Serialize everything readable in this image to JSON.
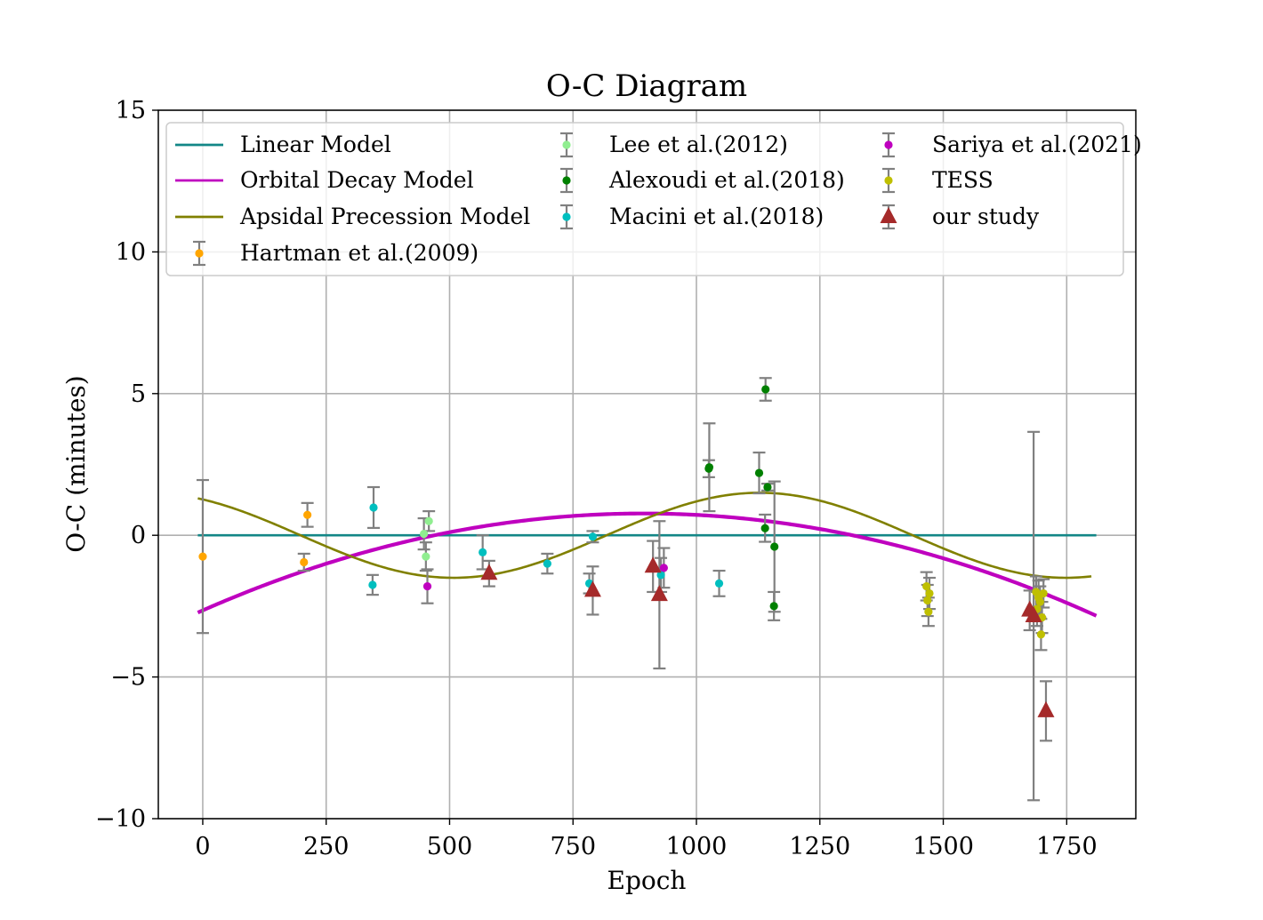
{
  "chart_data": {
    "type": "scatter",
    "title": "O-C Diagram",
    "xlabel": "Epoch",
    "ylabel": "O-C (minutes)",
    "xlim": [
      -90,
      1890
    ],
    "ylim": [
      -10,
      15
    ],
    "grid": true,
    "legend_position": "top",
    "x_ticks": [
      0,
      250,
      500,
      750,
      1000,
      1250,
      1500,
      1750
    ],
    "y_ticks": [
      15,
      10,
      5,
      0,
      -5,
      -10
    ],
    "x_tick_labels": [
      "0",
      "250",
      "500",
      "750",
      "1000",
      "1250",
      "1500",
      "1750"
    ],
    "y_tick_labels": [
      "15",
      "10",
      "5",
      "0",
      "−5",
      "−10"
    ],
    "models": [
      {
        "name": "Linear Model",
        "color": "#138787",
        "x_range": [
          -10,
          1810
        ],
        "formula": "linear",
        "params": {
          "value": 0.0
        }
      },
      {
        "name": "Orbital Decay Model",
        "color": "#bf00bf",
        "x_range": [
          -10,
          1810
        ],
        "formula": "quadratic",
        "params": {
          "a": -2.65,
          "b": 0.00766,
          "c": -4.29e-06
        }
      },
      {
        "name": "Apsidal Precession Model",
        "color": "#808000",
        "x_range": [
          -10,
          1800
        ],
        "formula": "sinusoid",
        "params": {
          "offset": 0.0,
          "amplitude": 1.5,
          "period": 1240,
          "peak_epoch": 1128
        }
      }
    ],
    "series": [
      {
        "name": "Hartman et al.(2009)",
        "color": "#ffa500",
        "marker": "circle",
        "points": [
          {
            "x": 0,
            "y": -0.75,
            "err": 2.7
          },
          {
            "x": 205,
            "y": -0.95,
            "err": 0.3
          },
          {
            "x": 212,
            "y": 0.72,
            "err": 0.42
          }
        ]
      },
      {
        "name": "Lee et al.(2012)",
        "color": "#90ee90",
        "marker": "circle",
        "points": [
          {
            "x": 448,
            "y": 0.05,
            "err": 0.55
          },
          {
            "x": 452,
            "y": -0.75,
            "err": 0.5
          },
          {
            "x": 458,
            "y": 0.5,
            "err": 0.35
          }
        ]
      },
      {
        "name": "Alexoudi et al.(2018)",
        "color": "#008000",
        "marker": "circle",
        "points": [
          {
            "x": 1025,
            "y": 2.35,
            "err": 0.3
          },
          {
            "x": 1026,
            "y": 2.4,
            "err": 1.55
          },
          {
            "x": 1127,
            "y": 2.2,
            "err": 0.72
          },
          {
            "x": 1139,
            "y": 0.25,
            "err": 0.48
          },
          {
            "x": 1140,
            "y": 5.15,
            "err": 0.4
          },
          {
            "x": 1144,
            "y": 1.7,
            "err": 0.12
          },
          {
            "x": 1157,
            "y": -2.5,
            "err": 0.5
          },
          {
            "x": 1158,
            "y": -0.4,
            "err": 2.3
          }
        ]
      },
      {
        "name": "Macini et al.(2018)",
        "color": "#00bfbf",
        "marker": "circle",
        "points": [
          {
            "x": 344,
            "y": -1.75,
            "err": 0.35
          },
          {
            "x": 346,
            "y": 0.98,
            "err": 0.72
          },
          {
            "x": 567,
            "y": -0.6,
            "err": 0.6
          },
          {
            "x": 698,
            "y": -1.0,
            "err": 0.35
          },
          {
            "x": 783,
            "y": -1.7,
            "err": 0.35
          },
          {
            "x": 790,
            "y": -0.05,
            "err": 0.2
          },
          {
            "x": 928,
            "y": -1.4,
            "err": 0.6
          },
          {
            "x": 1046,
            "y": -1.7,
            "err": 0.45
          }
        ]
      },
      {
        "name": "Sariya et al.(2021)",
        "color": "#bf00bf",
        "marker": "circle",
        "points": [
          {
            "x": 455,
            "y": -1.8,
            "err": 0.6
          },
          {
            "x": 934,
            "y": -1.15,
            "err": 0.7
          }
        ]
      },
      {
        "name": "TESS",
        "color": "#bfbf00",
        "marker": "circle",
        "points": [
          {
            "x": 1466,
            "y": -1.8,
            "err": 0.5
          },
          {
            "x": 1468,
            "y": -2.3,
            "err": 0.55
          },
          {
            "x": 1470,
            "y": -2.7,
            "err": 0.5
          },
          {
            "x": 1472,
            "y": -2.05,
            "err": 0.55
          },
          {
            "x": 1688,
            "y": -2.0,
            "err": 0.55
          },
          {
            "x": 1690,
            "y": -2.6,
            "err": 0.6
          },
          {
            "x": 1693,
            "y": -2.2,
            "err": 0.6
          },
          {
            "x": 1696,
            "y": -2.35,
            "err": 0.55
          },
          {
            "x": 1698,
            "y": -3.5,
            "err": 0.55
          },
          {
            "x": 1700,
            "y": -2.9,
            "err": 0.55
          },
          {
            "x": 1703,
            "y": -2.05,
            "err": 0.5
          }
        ]
      },
      {
        "name": "our study",
        "color": "#a52a2a",
        "marker": "triangle",
        "points": [
          {
            "x": 580,
            "y": -1.35,
            "err": 0.45
          },
          {
            "x": 790,
            "y": -1.95,
            "err": 0.85
          },
          {
            "x": 912,
            "y": -1.1,
            "err": 0.9
          },
          {
            "x": 925,
            "y": -2.1,
            "err": 2.6
          },
          {
            "x": 1675,
            "y": -2.65,
            "err": 0.7
          },
          {
            "x": 1683,
            "y": -2.85,
            "err": 6.5
          },
          {
            "x": 1708,
            "y": -6.2,
            "err": 1.05
          }
        ]
      }
    ]
  }
}
